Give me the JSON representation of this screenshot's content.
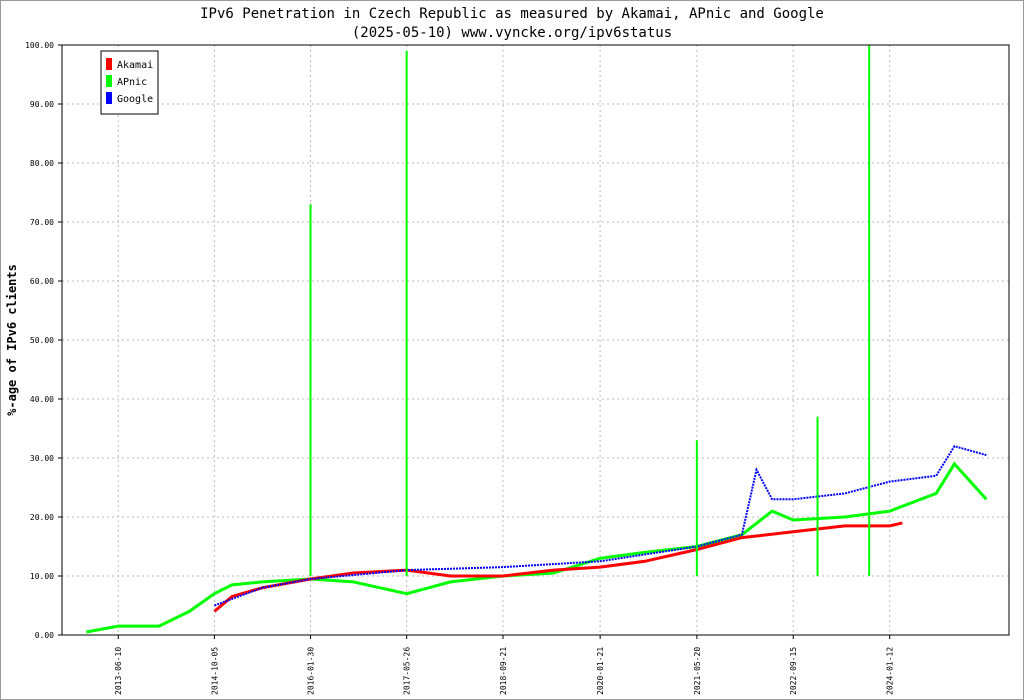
{
  "chart_data": {
    "type": "line",
    "title": "IPv6 Penetration in Czech Republic as measured by Akamai, APnic and Google",
    "subtitle": "(2025-05-10) www.vyncke.org/ipv6status",
    "xlabel": "",
    "ylabel": "%-age of IPv6 clients",
    "ylim": [
      0,
      100
    ],
    "xlim": [
      "2012-09-01",
      "2025-09-01"
    ],
    "y_ticks": [
      "0.00",
      "10.00",
      "20.00",
      "30.00",
      "40.00",
      "50.00",
      "60.00",
      "70.00",
      "80.00",
      "90.00",
      "100.00"
    ],
    "x_ticks": [
      "2013-06-10",
      "2014-10-05",
      "2016-01-30",
      "2017-05-26",
      "2018-09-21",
      "2020-01-21",
      "2021-05-20",
      "2022-09-15",
      "2024-01-12"
    ],
    "grid": true,
    "legend_position": "top-left",
    "series": [
      {
        "name": "Akamai",
        "color": "#ff0000",
        "points": [
          [
            "2014-10-05",
            4.0
          ],
          [
            "2015-01-01",
            6.5
          ],
          [
            "2015-06-01",
            8.0
          ],
          [
            "2016-01-30",
            9.5
          ],
          [
            "2016-09-01",
            10.5
          ],
          [
            "2017-05-26",
            11.0
          ],
          [
            "2018-01-01",
            10.0
          ],
          [
            "2018-09-21",
            10.0
          ],
          [
            "2019-06-01",
            11.0
          ],
          [
            "2020-01-21",
            11.5
          ],
          [
            "2020-09-01",
            12.5
          ],
          [
            "2021-05-20",
            14.5
          ],
          [
            "2022-01-01",
            16.5
          ],
          [
            "2022-09-15",
            17.5
          ],
          [
            "2023-06-01",
            18.5
          ],
          [
            "2024-01-12",
            18.5
          ],
          [
            "2024-03-15",
            19.0
          ]
        ]
      },
      {
        "name": "APnic",
        "color": "#00ff00",
        "points": [
          [
            "2013-01-01",
            0.5
          ],
          [
            "2013-06-10",
            1.5
          ],
          [
            "2014-01-01",
            1.5
          ],
          [
            "2014-06-01",
            4.0
          ],
          [
            "2014-10-05",
            7.0
          ],
          [
            "2015-01-01",
            8.5
          ],
          [
            "2015-06-01",
            9.0
          ],
          [
            "2016-01-30",
            9.5
          ],
          [
            "2016-09-01",
            9.0
          ],
          [
            "2017-05-26",
            7.0
          ],
          [
            "2018-01-01",
            9.0
          ],
          [
            "2018-09-21",
            10.0
          ],
          [
            "2019-06-01",
            10.5
          ],
          [
            "2020-01-21",
            13.0
          ],
          [
            "2020-09-01",
            14.0
          ],
          [
            "2021-05-20",
            15.0
          ],
          [
            "2022-01-01",
            17.0
          ],
          [
            "2022-06-01",
            21.0
          ],
          [
            "2022-09-15",
            19.5
          ],
          [
            "2023-06-01",
            20.0
          ],
          [
            "2024-01-12",
            21.0
          ],
          [
            "2024-09-01",
            24.0
          ],
          [
            "2024-12-01",
            29.0
          ],
          [
            "2025-05-10",
            23.0
          ]
        ]
      },
      {
        "name": "Google",
        "color": "#0000ff",
        "points": [
          [
            "2014-10-05",
            5.0
          ],
          [
            "2015-06-01",
            8.0
          ],
          [
            "2016-01-30",
            9.5
          ],
          [
            "2017-05-26",
            11.0
          ],
          [
            "2018-09-21",
            11.5
          ],
          [
            "2020-01-21",
            12.5
          ],
          [
            "2021-05-20",
            15.0
          ],
          [
            "2022-01-01",
            17.0
          ],
          [
            "2022-03-15",
            28.0
          ],
          [
            "2022-06-01",
            23.0
          ],
          [
            "2022-09-15",
            23.0
          ],
          [
            "2023-06-01",
            24.0
          ],
          [
            "2024-01-12",
            26.0
          ],
          [
            "2024-09-01",
            27.0
          ],
          [
            "2024-12-01",
            32.0
          ],
          [
            "2025-05-10",
            30.5
          ]
        ]
      }
    ],
    "spikes": [
      {
        "date": "2016-01-30",
        "value": 73.0,
        "series": "APnic"
      },
      {
        "date": "2017-05-26",
        "value": 99.0,
        "series": "APnic"
      },
      {
        "date": "2021-05-20",
        "value": 33.0,
        "series": "APnic"
      },
      {
        "date": "2023-01-15",
        "value": 37.0,
        "series": "APnic"
      },
      {
        "date": "2023-10-01",
        "value": 100.0,
        "series": "APnic"
      }
    ]
  }
}
